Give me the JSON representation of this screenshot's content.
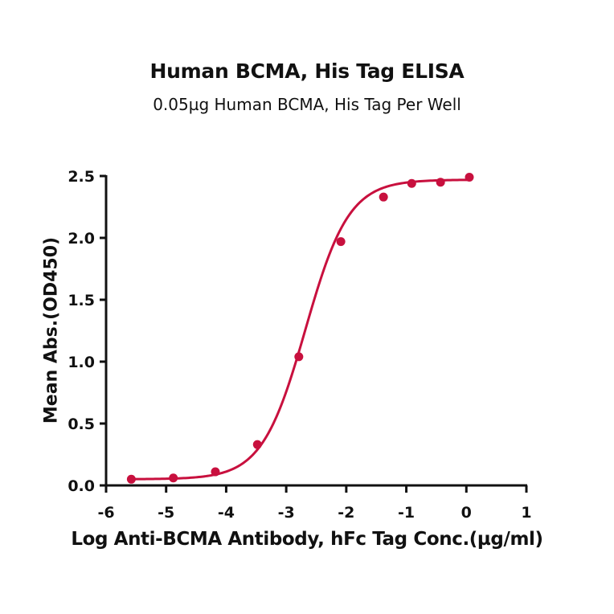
{
  "chart_data": {
    "type": "scatter",
    "title": "Human BCMA, His Tag ELISA",
    "subtitle": "0.05µg Human BCMA, His Tag Per Well",
    "xlabel": "Log Anti-BCMA Antibody, hFc Tag Conc.(µg/ml)",
    "ylabel": "Mean Abs.(OD450)",
    "xlim": [
      -6,
      1
    ],
    "ylim": [
      0,
      2.5
    ],
    "xticks": [
      -6,
      -5,
      -4,
      -3,
      -2,
      -1,
      0,
      1
    ],
    "yticks": [
      "0.0",
      "0.5",
      "1.0",
      "1.5",
      "2.0",
      "2.5"
    ],
    "grid": false,
    "legend": null,
    "series": [
      {
        "name": "Human BCMA, His Tag",
        "color": "#c8103e",
        "x": [
          -5.58,
          -4.88,
          -4.18,
          -3.48,
          -2.79,
          -2.09,
          -1.38,
          -0.91,
          -0.43,
          0.05
        ],
        "y": [
          0.05,
          0.06,
          0.11,
          0.33,
          1.04,
          1.97,
          2.33,
          2.44,
          2.45,
          2.49
        ],
        "fit": {
          "model": "4PL",
          "bottom": 0.05,
          "top": 2.47,
          "logEC50": -2.68,
          "hill": 1.2
        }
      }
    ]
  }
}
